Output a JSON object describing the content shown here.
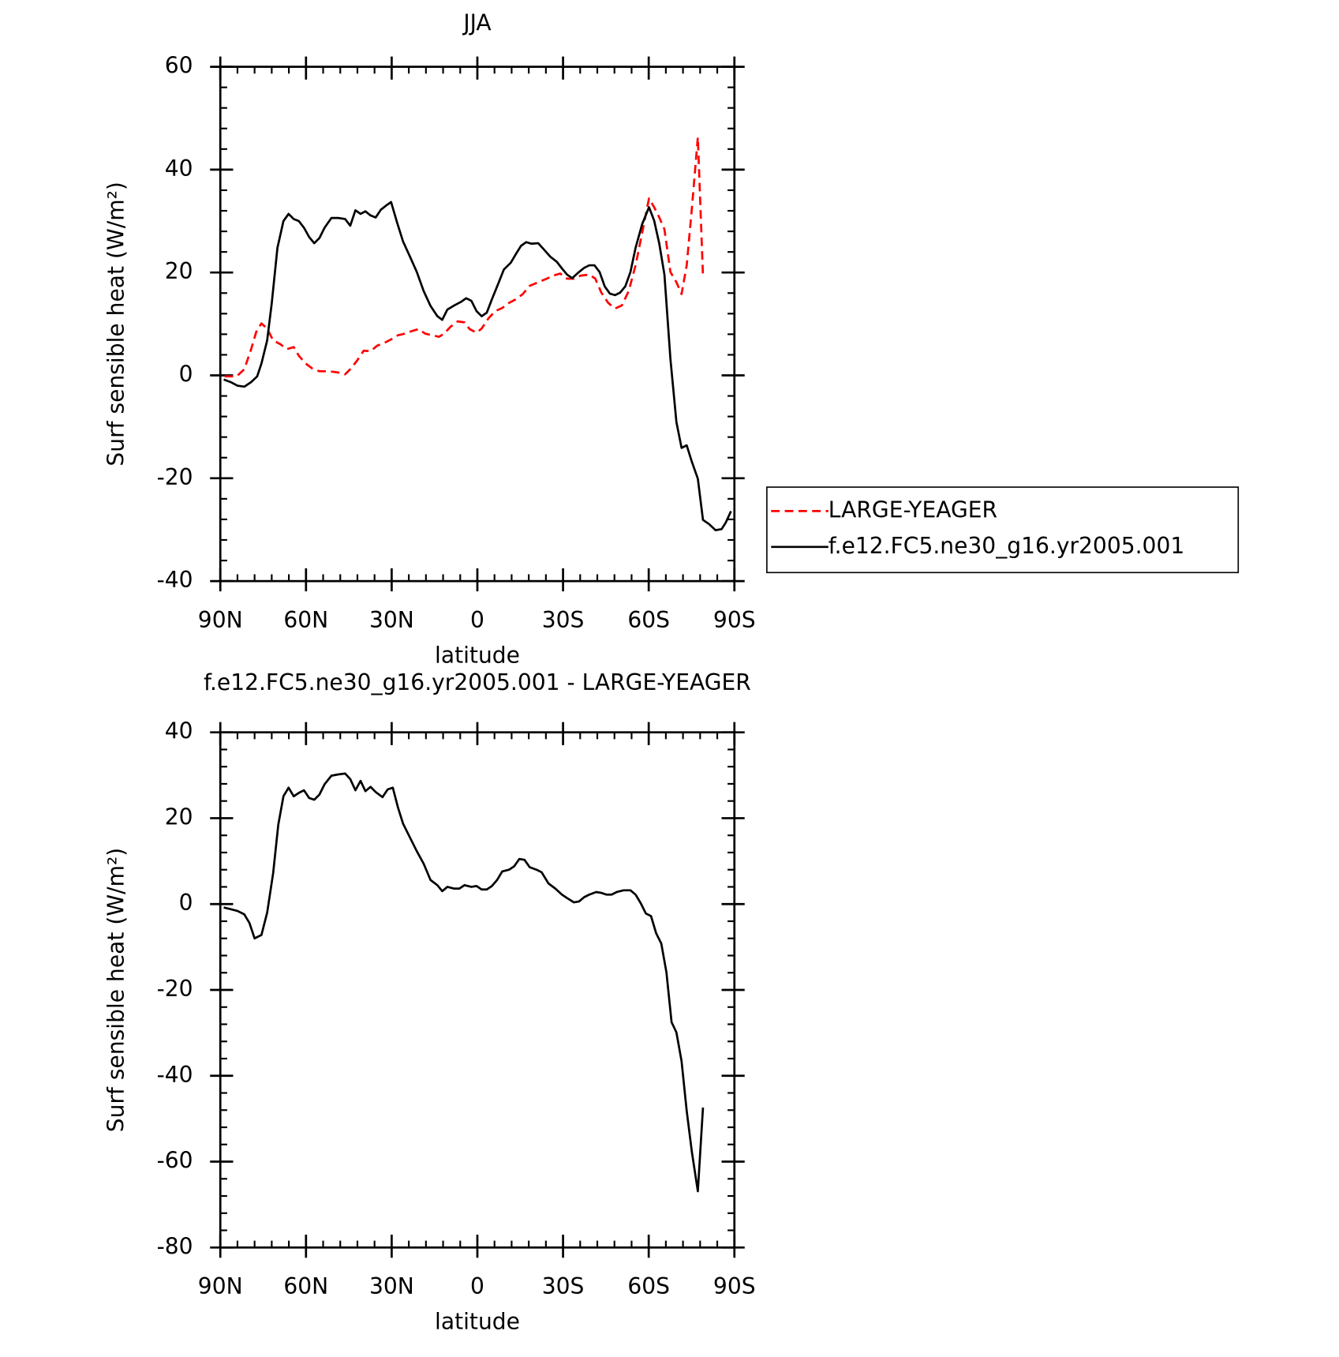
{
  "chart_data": [
    {
      "type": "line",
      "title": "JJA",
      "xlabel": "latitude",
      "ylabel": "Surf sensible heat (W/m²)",
      "xlim": [
        90,
        -90
      ],
      "ylim": [
        -40,
        60
      ],
      "xticks": [
        {
          "value": 90,
          "label": "90N"
        },
        {
          "value": 60,
          "label": "60N"
        },
        {
          "value": 30,
          "label": "30N"
        },
        0,
        {
          "value": -30,
          "label": "30S"
        },
        {
          "value": -60,
          "label": "60S"
        },
        {
          "value": -90,
          "label": "90S"
        }
      ],
      "yticks": [
        -40,
        -20,
        0,
        20,
        40,
        60
      ],
      "legend_position": "outside-right",
      "series": [
        {
          "name": "LARGE-YEAGER",
          "color": "#ff0000",
          "dash": true,
          "x": [
            88.5,
            84.3,
            81.6,
            79.2,
            77.4,
            75.6,
            73.6,
            71.5,
            69.1,
            66.7,
            64.3,
            62.5,
            60.1,
            57.7,
            55.3,
            52.9,
            50.5,
            48.1,
            46.3,
            44.5,
            42.2,
            39.8,
            37.4,
            35,
            32.6,
            30.2,
            27.8,
            25.4,
            23,
            20.6,
            18.2,
            15.8,
            13.4,
            11.7,
            9.3,
            6.9,
            4.5,
            2.7,
            0.3,
            -1.5,
            -3.9,
            -6.3,
            -8.7,
            -11.1,
            -13.5,
            -15.9,
            -18.3,
            -21.3,
            -24.3,
            -26.6,
            -29,
            -31.4,
            -33.8,
            -36.2,
            -39.2,
            -41.3,
            -43.4,
            -45.8,
            -48.2,
            -50.6,
            -53,
            -55.4,
            -57.7,
            -60.1,
            -61.9,
            -63.7,
            -65.5,
            -67.6,
            -69.7,
            -71.5,
            -73.3,
            -75.1,
            -77.2,
            -79
          ],
          "values": [
            -0.2,
            -0.2,
            1.2,
            5.1,
            8.5,
            10.1,
            9.1,
            6.8,
            6.1,
            5.1,
            5.5,
            3.8,
            2.3,
            1.3,
            0.8,
            0.8,
            0.7,
            0.5,
            0.2,
            1.2,
            2.8,
            4.8,
            4.7,
            5.8,
            6.3,
            7,
            7.8,
            8.1,
            8.6,
            9,
            8.1,
            7.8,
            7.5,
            8.1,
            9.5,
            10.5,
            10.3,
            9,
            8.3,
            9.1,
            11.1,
            12.5,
            13.1,
            14.1,
            14.8,
            15.8,
            17.4,
            18.1,
            18.8,
            19.4,
            19.8,
            18.8,
            18.8,
            19.4,
            19.6,
            18.8,
            16.1,
            14.1,
            13,
            13.6,
            16.4,
            21.4,
            27.7,
            34.4,
            32.7,
            30.7,
            28.4,
            20.1,
            18.1,
            15.8,
            21.4,
            32.4,
            46.3,
            19.3
          ]
        },
        {
          "name": "f.e12.FC5.ne30_g16.yr2005.001",
          "color": "#000000",
          "dash": false,
          "x": [
            88.8,
            86.4,
            84,
            81.6,
            79.2,
            77.1,
            75.6,
            73.6,
            72,
            70,
            67.9,
            66.1,
            64.3,
            62.5,
            60.7,
            58.9,
            57.1,
            55.3,
            53.5,
            51.1,
            48.7,
            46.3,
            44.5,
            42.7,
            40.9,
            39.2,
            37.4,
            35.6,
            33.8,
            32,
            30.2,
            28.1,
            26,
            23.6,
            21.2,
            18.8,
            16.4,
            14,
            12.3,
            10.5,
            8.1,
            5.7,
            3.9,
            2.1,
            0.3,
            -1.5,
            -3.3,
            -5.1,
            -7.5,
            -9.3,
            -11.7,
            -13.5,
            -15.3,
            -17.1,
            -18.9,
            -21.3,
            -23.1,
            -25.5,
            -27.8,
            -29.6,
            -31.4,
            -33.2,
            -35.6,
            -37.4,
            -39.2,
            -41,
            -42.8,
            -44.6,
            -46.4,
            -48.2,
            -50,
            -51.8,
            -53.6,
            -55.4,
            -57.7,
            -60.1,
            -61.9,
            -63.7,
            -65.5,
            -67.6,
            -69.7,
            -71.5,
            -73.3,
            -75.1,
            -77.2,
            -79,
            -81.1,
            -83.4,
            -85.5,
            -87,
            -88.8
          ],
          "values": [
            -0.8,
            -1.3,
            -2,
            -2.2,
            -1.3,
            -0.2,
            2.3,
            6.8,
            14,
            24.8,
            30,
            31.4,
            30.4,
            30,
            28.7,
            26.9,
            25.7,
            26.7,
            28.7,
            30.6,
            30.6,
            30.4,
            29.1,
            32.1,
            31.4,
            31.9,
            31.1,
            30.7,
            32.2,
            33,
            33.7,
            29.7,
            26,
            23.1,
            20.1,
            16.4,
            13.5,
            11.5,
            10.8,
            12.8,
            13.6,
            14.3,
            15,
            14.5,
            12.5,
            11.5,
            12.2,
            14.8,
            18.1,
            20.6,
            21.9,
            23.6,
            25.2,
            25.9,
            25.6,
            25.7,
            24.6,
            23.1,
            22.1,
            20.8,
            19.6,
            18.9,
            20.1,
            20.9,
            21.4,
            21.4,
            20.1,
            17.3,
            15.9,
            15.6,
            16.1,
            17.3,
            20.1,
            24.8,
            29.4,
            32.7,
            30.1,
            25.6,
            19.6,
            3.2,
            -9.1,
            -14.1,
            -13.6,
            -16.8,
            -20.1,
            -28.1,
            -28.9,
            -30.1,
            -29.9,
            -28.6,
            -26.4
          ]
        }
      ]
    },
    {
      "type": "line",
      "title": "f.e12.FC5.ne30_g16.yr2005.001 - LARGE-YEAGER",
      "xlabel": "latitude",
      "ylabel": "Surf sensible heat (W/m²)",
      "xlim": [
        90,
        -90
      ],
      "ylim": [
        -80,
        40
      ],
      "xticks": [
        {
          "value": 90,
          "label": "90N"
        },
        {
          "value": 60,
          "label": "60N"
        },
        {
          "value": 30,
          "label": "30N"
        },
        0,
        {
          "value": -30,
          "label": "30S"
        },
        {
          "value": -60,
          "label": "60S"
        },
        {
          "value": -90,
          "label": "90S"
        }
      ],
      "yticks": [
        -80,
        -60,
        -40,
        -20,
        0,
        20,
        40
      ],
      "series": [
        {
          "color": "#000000",
          "dash": false,
          "x": [
            88.8,
            86.4,
            84,
            81.6,
            79.8,
            78,
            75.6,
            73.6,
            71.5,
            69.7,
            67.9,
            66.1,
            64.3,
            62.5,
            60.7,
            58.9,
            57.1,
            55.3,
            53.5,
            51.1,
            48.7,
            46.3,
            44.5,
            42.7,
            40.9,
            39.2,
            37.4,
            35.6,
            33.2,
            31.4,
            29.6,
            27.8,
            26,
            23.6,
            21.2,
            18.8,
            16.4,
            14,
            12.3,
            10.5,
            8.1,
            6.3,
            4.5,
            2.1,
            0.3,
            -1.5,
            -3.3,
            -5.1,
            -6.9,
            -8.7,
            -11.1,
            -12.9,
            -14.7,
            -16.5,
            -18.3,
            -20.7,
            -22.5,
            -24.9,
            -27.3,
            -29.6,
            -31.4,
            -33.8,
            -35.6,
            -37.4,
            -39.2,
            -41.6,
            -43.4,
            -45.2,
            -47,
            -48.8,
            -51.2,
            -53.6,
            -55.4,
            -57.2,
            -59,
            -60.8,
            -62.6,
            -64.4,
            -66.2,
            -68,
            -69.7,
            -71.5,
            -73.3,
            -75.1,
            -77.2,
            -79
          ],
          "values": [
            -0.8,
            -1.2,
            -1.6,
            -2.4,
            -4.4,
            -8,
            -7.2,
            -2,
            7.2,
            18.5,
            25.1,
            27.1,
            25.1,
            25.9,
            26.5,
            24.7,
            24.3,
            25.5,
            27.9,
            29.9,
            30.2,
            30.4,
            29.1,
            26.5,
            28.7,
            26.3,
            27.3,
            26.1,
            24.9,
            26.7,
            27.1,
            22.5,
            18.7,
            15.5,
            12.3,
            9.4,
            5.6,
            4.4,
            3,
            4,
            3.6,
            3.6,
            4.4,
            4,
            4.2,
            3.4,
            3.4,
            4.2,
            5.6,
            7.6,
            8,
            8.8,
            10.5,
            10.3,
            8.6,
            8,
            7.4,
            4.8,
            3.6,
            2.2,
            1.4,
            0.4,
            0.6,
            1.6,
            2.2,
            2.8,
            2.6,
            2.2,
            2.2,
            2.8,
            3.2,
            3.2,
            2.2,
            0.2,
            -2.2,
            -2.8,
            -6.8,
            -9.2,
            -15.9,
            -27.5,
            -29.9,
            -36.6,
            -48.2,
            -57.7,
            -66.9,
            -47.4
          ]
        }
      ]
    }
  ]
}
